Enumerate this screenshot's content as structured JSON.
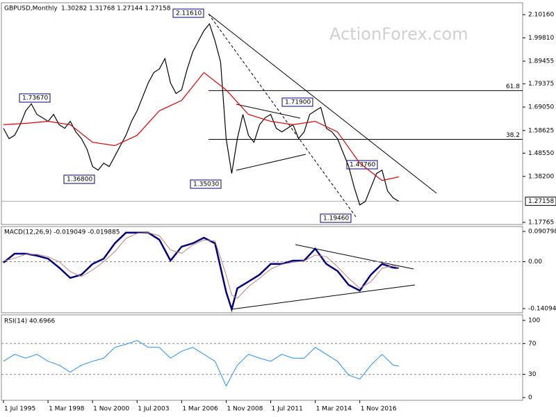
{
  "chart_data": [
    {
      "type": "line",
      "title": "GBPUSD,Monthly",
      "subtitle": "1.30282 1.31768 1.27144 1.27158",
      "watermark": "ActionForex.com",
      "xlim": [
        -1.5,
        373
      ],
      "ylim": [
        1.1683,
        2.1543
      ],
      "yticks": [
        {
          "value": 2.1016,
          "label": "2.10160"
        },
        {
          "value": 1.9981,
          "label": "1.99810"
        },
        1.89455,
        1.79375,
        {
          "value": 1.6905,
          "label": "1.69050"
        },
        1.58625,
        {
          "value": 1.4855,
          "label": "1.48550"
        },
        {
          "value": 1.382,
          "label": "1.38200"
        },
        1.17765
      ],
      "last_price": 1.27158,
      "levels": [
        {
          "value": 1.7636,
          "label": "61.8"
        },
        {
          "value": 1.547,
          "label": "38.2"
        }
      ],
      "annotations": [
        "2.11610",
        "1.73670",
        "1.36800",
        "1.35030",
        "1.71900",
        "1.43760",
        "1.19460"
      ],
      "series": [
        {
          "color": "#000000",
          "x": [
            0,
            4,
            8,
            12,
            16,
            20,
            24,
            28,
            32,
            36,
            40,
            44,
            48,
            52,
            56,
            60,
            64,
            68,
            72,
            76,
            80,
            84,
            88,
            92,
            96,
            100,
            104,
            108,
            112,
            116,
            120,
            124,
            128,
            132,
            136,
            140,
            144,
            148,
            152,
            156,
            160,
            164,
            168,
            172,
            176,
            180,
            184,
            188,
            192,
            196,
            200,
            204,
            208,
            212,
            216,
            220,
            224,
            228,
            232,
            236,
            240,
            244,
            248,
            252,
            256,
            260,
            264,
            268,
            272,
            276,
            280,
            284
          ],
          "values": [
            1.596,
            1.55,
            1.565,
            1.612,
            1.674,
            1.705,
            1.658,
            1.643,
            1.627,
            1.658,
            1.612,
            1.596,
            1.627,
            1.58,
            1.55,
            1.503,
            1.426,
            1.41,
            1.441,
            1.426,
            1.472,
            1.519,
            1.565,
            1.627,
            1.674,
            1.736,
            1.798,
            1.844,
            1.86,
            1.906,
            1.798,
            1.751,
            1.767,
            1.86,
            1.937,
            1.984,
            2.03,
            2.061,
            1.984,
            1.891,
            1.55,
            1.395,
            1.55,
            1.658,
            1.565,
            1.534,
            1.612,
            1.643,
            1.658,
            1.596,
            1.58,
            1.596,
            1.612,
            1.55,
            1.58,
            1.658,
            1.674,
            1.689,
            1.596,
            1.58,
            1.55,
            1.488,
            1.426,
            1.333,
            1.255,
            1.271,
            1.333,
            1.395,
            1.41,
            1.317,
            1.286,
            1.27158
          ]
        },
        {
          "color": "#e00000",
          "x": [
            0,
            16,
            32,
            48,
            64,
            80,
            96,
            112,
            128,
            144,
            160,
            176,
            192,
            208,
            224,
            240,
            256,
            272,
            284
          ],
          "values": [
            1.612,
            1.618,
            1.627,
            1.612,
            1.534,
            1.519,
            1.565,
            1.674,
            1.72,
            1.844,
            1.767,
            1.658,
            1.627,
            1.612,
            1.627,
            1.58,
            1.441,
            1.364,
            1.38
          ]
        }
      ]
    },
    {
      "type": "line",
      "title": "MACD(12,26,9) -0.019049 -0.019885",
      "xlim": [
        -1.5,
        373
      ],
      "ylim": [
        -0.1535,
        0.1054
      ],
      "yticks": [
        0.090798,
        {
          "value": 0,
          "label": "0.00"
        },
        -0.14094
      ],
      "series": [
        {
          "color": "#000080",
          "width": 2.5,
          "x": [
            0,
            8,
            16,
            24,
            32,
            40,
            48,
            56,
            64,
            72,
            80,
            88,
            96,
            104,
            112,
            120,
            128,
            136,
            144,
            152,
            160,
            164,
            168,
            176,
            184,
            192,
            200,
            208,
            216,
            224,
            232,
            240,
            248,
            256,
            264,
            272,
            280,
            284
          ],
          "values": [
            -0.003,
            0.024,
            0.024,
            0.018,
            0.009,
            -0.018,
            -0.049,
            -0.039,
            -0.007,
            0.009,
            0.055,
            0.087,
            0.087,
            0.087,
            0.066,
            0.003,
            0.045,
            0.055,
            0.072,
            0.055,
            -0.091,
            -0.143,
            -0.08,
            -0.06,
            -0.039,
            -0.007,
            -0.007,
            0.003,
            0.003,
            0.039,
            -0.007,
            -0.028,
            -0.07,
            -0.087,
            -0.039,
            -0.007,
            -0.018,
            -0.019049
          ]
        },
        {
          "color": "#c08080",
          "width": 1,
          "x": [
            0,
            8,
            16,
            24,
            32,
            40,
            48,
            56,
            64,
            72,
            80,
            88,
            96,
            104,
            112,
            120,
            128,
            136,
            144,
            152,
            160,
            164,
            168,
            176,
            184,
            192,
            200,
            208,
            216,
            224,
            232,
            240,
            248,
            256,
            264,
            272,
            280,
            284
          ],
          "values": [
            0.002,
            0.01,
            0.022,
            0.022,
            0.015,
            0.0,
            -0.03,
            -0.045,
            -0.025,
            0.0,
            0.03,
            0.07,
            0.085,
            0.087,
            0.078,
            0.035,
            0.025,
            0.05,
            0.065,
            0.062,
            -0.04,
            -0.1,
            -0.11,
            -0.075,
            -0.05,
            -0.022,
            -0.008,
            -0.002,
            0.002,
            0.02,
            0.015,
            -0.015,
            -0.05,
            -0.08,
            -0.06,
            -0.02,
            -0.012,
            -0.019885
          ]
        }
      ]
    },
    {
      "type": "line",
      "title": "RSI(14) 40.6966",
      "xlim": [
        -1.5,
        373
      ],
      "ylim": [
        -3.6,
        107.2
      ],
      "yticks": [
        100,
        70,
        30,
        0
      ],
      "dashed": [
        70,
        30
      ],
      "xticks": [
        {
          "value": 0,
          "label": "1 Jul 1995"
        },
        {
          "value": 32,
          "label": "1 Mar 1998"
        },
        {
          "value": 64,
          "label": "1 Nov 2000"
        },
        {
          "value": 96,
          "label": "1 Jul 2003"
        },
        {
          "value": 128,
          "label": "1 Mar 2006"
        },
        {
          "value": 160,
          "label": "1 Nov 2008"
        },
        {
          "value": 192,
          "label": "1 Jul 2011"
        },
        {
          "value": 224,
          "label": "1 Mar 2014"
        },
        {
          "value": 256,
          "label": "1 Nov 2016"
        }
      ],
      "series": [
        {
          "color": "#1e90ff",
          "width": 1,
          "x": [
            0,
            8,
            16,
            24,
            32,
            40,
            48,
            56,
            64,
            72,
            80,
            88,
            96,
            104,
            112,
            120,
            128,
            136,
            144,
            152,
            160,
            168,
            176,
            184,
            192,
            200,
            208,
            216,
            224,
            232,
            240,
            248,
            256,
            264,
            272,
            280,
            284
          ],
          "values": [
            47,
            56,
            51,
            56,
            47,
            42,
            33,
            42,
            47,
            51,
            65,
            69,
            74,
            65,
            65,
            51,
            60,
            65,
            56,
            47,
            15,
            42,
            56,
            51,
            47,
            56,
            51,
            51,
            65,
            56,
            47,
            29,
            24,
            42,
            56,
            42,
            40.6966
          ]
        }
      ]
    }
  ]
}
